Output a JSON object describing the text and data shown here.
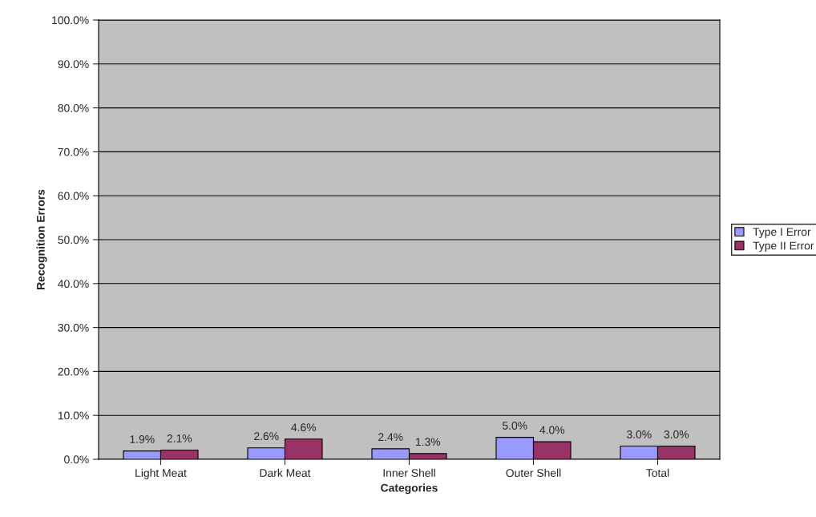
{
  "chart_data": {
    "type": "bar",
    "xlabel": "Categories",
    "ylabel": "Recognition Errors",
    "categories": [
      "Light Meat",
      "Dark Meat",
      "Inner Shell",
      "Outer Shell",
      "Total"
    ],
    "series": [
      {
        "name": "Type I Error",
        "color": "#9999ff",
        "values": [
          1.9,
          2.6,
          2.4,
          5.0,
          3.0
        ],
        "value_labels": [
          "1.9%",
          "2.6%",
          "2.4%",
          "5.0%",
          "3.0%"
        ]
      },
      {
        "name": "Type II Error",
        "color": "#993366",
        "values": [
          2.1,
          4.6,
          1.3,
          4.0,
          3.0
        ],
        "value_labels": [
          "2.1%",
          "4.6%",
          "1.3%",
          "4.0%",
          "3.0%"
        ]
      }
    ],
    "ylim": [
      0,
      100
    ],
    "yticks": [
      {
        "value": 0,
        "label": "0.0%"
      },
      {
        "value": 10,
        "label": "10.0%"
      },
      {
        "value": 20,
        "label": "20.0%"
      },
      {
        "value": 30,
        "label": "30.0%"
      },
      {
        "value": 40,
        "label": "40.0%"
      },
      {
        "value": 50,
        "label": "50.0%"
      },
      {
        "value": 60,
        "label": "60.0%"
      },
      {
        "value": 70,
        "label": "70.0%"
      },
      {
        "value": 80,
        "label": "80.0%"
      },
      {
        "value": 90,
        "label": "90.0%"
      },
      {
        "value": 100,
        "label": "100.0%"
      }
    ],
    "grid": "y",
    "legend": "right"
  }
}
